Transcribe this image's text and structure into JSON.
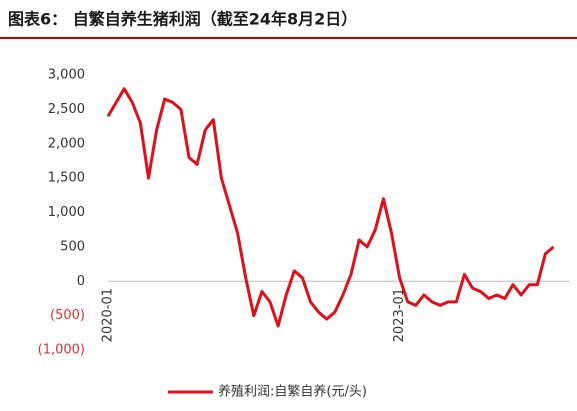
{
  "chart_data": {
    "type": "line",
    "title": "图表6： 自繁自养生猪利润（截至24年8月2日）",
    "categories": [
      "2020-01",
      null,
      null,
      null,
      null,
      null,
      null,
      null,
      null,
      null,
      null,
      null,
      null,
      null,
      null,
      null,
      null,
      null,
      null,
      null,
      null,
      null,
      null,
      null,
      null,
      null,
      null,
      null,
      null,
      null,
      null,
      null,
      null,
      null,
      null,
      null,
      "2023-01",
      null,
      null,
      null,
      null,
      null,
      null,
      null,
      null,
      null,
      null,
      null,
      null,
      null,
      null,
      null,
      null,
      null,
      null,
      null
    ],
    "series": [
      {
        "name": "养殖利润:自繁自养(元/头)",
        "color": "#e0101a",
        "values": [
          2400,
          2600,
          2800,
          2600,
          2300,
          1500,
          2200,
          2650,
          2600,
          2500,
          1800,
          1700,
          2200,
          2350,
          1500,
          1100,
          700,
          50,
          -500,
          -150,
          -300,
          -650,
          -200,
          150,
          50,
          -300,
          -450,
          -550,
          -450,
          -200,
          100,
          600,
          500,
          750,
          1200,
          700,
          50,
          -300,
          -350,
          -200,
          -300,
          -350,
          -300,
          -300,
          100,
          -100,
          -150,
          -250,
          -200,
          -250,
          -50,
          -200,
          -50,
          -50,
          400,
          500
        ]
      }
    ],
    "ylim": [
      -1000,
      3000
    ],
    "yticks": [
      {
        "value": 3000,
        "label": "3,000"
      },
      {
        "value": 2500,
        "label": "2,500"
      },
      {
        "value": 2000,
        "label": "2,000"
      },
      {
        "value": 1500,
        "label": "1,500"
      },
      {
        "value": 1000,
        "label": "1,000"
      },
      500,
      0,
      {
        "value": -500,
        "label": "(500)"
      },
      {
        "value": -1000,
        "label": "(1,000)"
      }
    ],
    "negative_tick_color": "#e03030",
    "legend": "bottom"
  }
}
